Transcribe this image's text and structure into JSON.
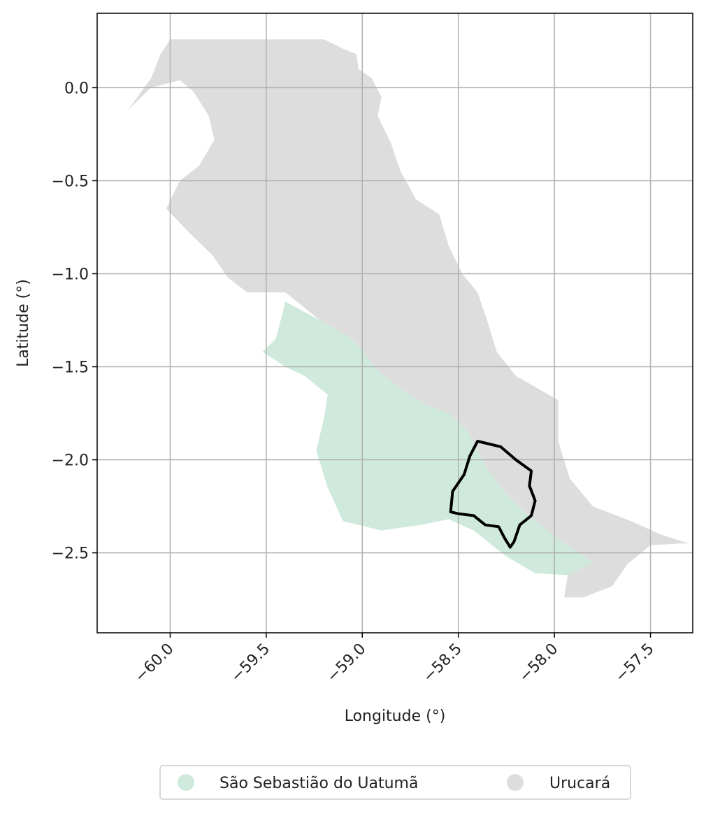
{
  "chart_data": {
    "type": "map",
    "xlabel": "Longitude (°)",
    "ylabel": "Latitude (°)",
    "xlim": [
      -60.38,
      -57.28
    ],
    "ylim": [
      -2.93,
      0.4
    ],
    "x_ticks": [
      -60.0,
      -59.5,
      -59.0,
      -58.5,
      -58.0,
      -57.5
    ],
    "x_tick_labels": [
      "−60.0",
      "−59.5",
      "−59.0",
      "−58.5",
      "−58.0",
      "−57.5"
    ],
    "y_ticks": [
      0.0,
      -0.5,
      -1.0,
      -1.5,
      -2.0,
      -2.5
    ],
    "y_tick_labels": [
      "0.0",
      "−0.5",
      "−1.0",
      "−1.5",
      "−2.0",
      "−2.5"
    ],
    "grid": true,
    "legend_position": "bottom-center, outside plot",
    "legend": [
      {
        "label": "São Sebastião do Uatumã",
        "color": "#cfeadd"
      },
      {
        "label": "Urucará",
        "color": "#dddddd"
      }
    ],
    "regions": [
      {
        "name": "Urucará",
        "color": "#dddddd",
        "outline": [
          [
            -60.0,
            0.26
          ],
          [
            -59.2,
            0.26
          ],
          [
            -59.1,
            0.21
          ],
          [
            -59.03,
            0.18
          ],
          [
            -59.02,
            0.1
          ],
          [
            -58.95,
            0.05
          ],
          [
            -58.9,
            -0.05
          ],
          [
            -58.92,
            -0.15
          ],
          [
            -58.85,
            -0.3
          ],
          [
            -58.8,
            -0.45
          ],
          [
            -58.72,
            -0.6
          ],
          [
            -58.6,
            -0.68
          ],
          [
            -58.55,
            -0.85
          ],
          [
            -58.48,
            -1.0
          ],
          [
            -58.4,
            -1.1
          ],
          [
            -58.35,
            -1.25
          ],
          [
            -58.3,
            -1.42
          ],
          [
            -58.2,
            -1.55
          ],
          [
            -58.08,
            -1.62
          ],
          [
            -57.98,
            -1.68
          ],
          [
            -57.98,
            -1.9
          ],
          [
            -57.92,
            -2.1
          ],
          [
            -57.8,
            -2.25
          ],
          [
            -57.6,
            -2.33
          ],
          [
            -57.45,
            -2.4
          ],
          [
            -57.3,
            -2.45
          ],
          [
            -57.35,
            -2.45
          ],
          [
            -57.5,
            -2.46
          ],
          [
            -57.62,
            -2.56
          ],
          [
            -57.7,
            -2.68
          ],
          [
            -57.85,
            -2.74
          ],
          [
            -57.95,
            -2.74
          ],
          [
            -57.93,
            -2.62
          ],
          [
            -57.8,
            -2.55
          ],
          [
            -57.95,
            -2.45
          ],
          [
            -58.1,
            -2.33
          ],
          [
            -58.22,
            -2.22
          ],
          [
            -58.35,
            -2.05
          ],
          [
            -58.45,
            -1.85
          ],
          [
            -58.55,
            -1.75
          ],
          [
            -58.68,
            -1.7
          ],
          [
            -58.8,
            -1.62
          ],
          [
            -58.92,
            -1.52
          ],
          [
            -59.05,
            -1.35
          ],
          [
            -59.22,
            -1.25
          ],
          [
            -59.4,
            -1.1
          ],
          [
            -59.6,
            -1.1
          ],
          [
            -59.7,
            -1.02
          ],
          [
            -59.78,
            -0.9
          ],
          [
            -59.9,
            -0.78
          ],
          [
            -60.02,
            -0.65
          ],
          [
            -59.95,
            -0.5
          ],
          [
            -59.85,
            -0.42
          ],
          [
            -59.77,
            -0.28
          ],
          [
            -59.8,
            -0.15
          ],
          [
            -59.88,
            -0.02
          ],
          [
            -59.95,
            0.04
          ],
          [
            -60.1,
            0.0
          ],
          [
            -60.22,
            -0.12
          ],
          [
            -60.1,
            0.05
          ],
          [
            -60.05,
            0.18
          ],
          [
            -60.0,
            0.26
          ]
        ]
      },
      {
        "name": "São Sebastião do Uatumã",
        "color": "#cfeadd",
        "outline": [
          [
            -59.4,
            -1.15
          ],
          [
            -59.22,
            -1.25
          ],
          [
            -59.05,
            -1.35
          ],
          [
            -58.92,
            -1.52
          ],
          [
            -58.8,
            -1.62
          ],
          [
            -58.68,
            -1.7
          ],
          [
            -58.55,
            -1.75
          ],
          [
            -58.45,
            -1.85
          ],
          [
            -58.35,
            -2.05
          ],
          [
            -58.22,
            -2.22
          ],
          [
            -58.1,
            -2.33
          ],
          [
            -57.95,
            -2.45
          ],
          [
            -57.8,
            -2.55
          ],
          [
            -57.93,
            -2.62
          ],
          [
            -58.1,
            -2.61
          ],
          [
            -58.25,
            -2.52
          ],
          [
            -58.42,
            -2.38
          ],
          [
            -58.55,
            -2.32
          ],
          [
            -58.7,
            -2.35
          ],
          [
            -58.9,
            -2.38
          ],
          [
            -59.1,
            -2.33
          ],
          [
            -59.18,
            -2.15
          ],
          [
            -59.24,
            -1.95
          ],
          [
            -59.2,
            -1.78
          ],
          [
            -59.18,
            -1.65
          ],
          [
            -59.3,
            -1.55
          ],
          [
            -59.4,
            -1.5
          ],
          [
            -59.52,
            -1.42
          ],
          [
            -59.45,
            -1.35
          ],
          [
            -59.4,
            -1.15
          ]
        ]
      }
    ],
    "highlight_boundary": {
      "color": "#000000",
      "outline": [
        [
          -58.4,
          -1.9
        ],
        [
          -58.28,
          -1.93
        ],
        [
          -58.2,
          -2.0
        ],
        [
          -58.12,
          -2.06
        ],
        [
          -58.13,
          -2.14
        ],
        [
          -58.1,
          -2.22
        ],
        [
          -58.12,
          -2.3
        ],
        [
          -58.18,
          -2.35
        ],
        [
          -58.21,
          -2.44
        ],
        [
          -58.23,
          -2.47
        ],
        [
          -58.26,
          -2.42
        ],
        [
          -58.29,
          -2.36
        ],
        [
          -58.36,
          -2.35
        ],
        [
          -58.42,
          -2.3
        ],
        [
          -58.5,
          -2.29
        ],
        [
          -58.54,
          -2.28
        ],
        [
          -58.53,
          -2.17
        ],
        [
          -58.47,
          -2.08
        ],
        [
          -58.44,
          -1.98
        ],
        [
          -58.4,
          -1.9
        ]
      ]
    }
  }
}
